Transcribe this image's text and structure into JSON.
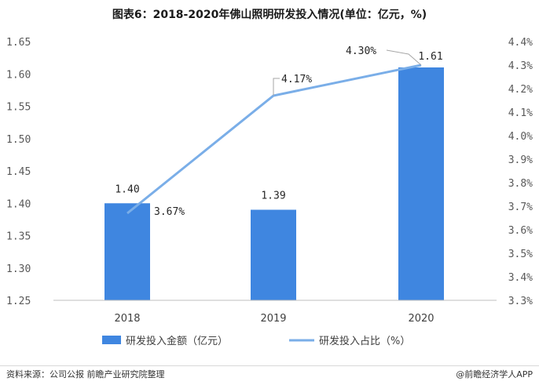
{
  "title": "图表6：2018-2020年佛山照明研发投入情况(单位：亿元，%)",
  "chart_data": {
    "type": "bar+line",
    "title": "图表6：2018-2020年佛山照明研发投入情况(单位：亿元，%)",
    "categories": [
      "2018",
      "2019",
      "2020"
    ],
    "series": [
      {
        "name": "研发投入金额（亿元）",
        "type": "bar",
        "axis": "left",
        "values": [
          1.4,
          1.39,
          1.61
        ],
        "labels": [
          "1.40",
          "1.39",
          "1.61"
        ],
        "color": "#3f86e0"
      },
      {
        "name": "研发投入占比（%）",
        "type": "line",
        "axis": "right",
        "values": [
          3.67,
          4.17,
          4.3
        ],
        "labels": [
          "3.67%",
          "4.17%",
          "4.30%"
        ],
        "color": "#7aaee8"
      }
    ],
    "left_axis": {
      "range": [
        1.25,
        1.65
      ],
      "ticks": [
        "1.25",
        "1.30",
        "1.35",
        "1.40",
        "1.45",
        "1.50",
        "1.55",
        "1.60",
        "1.65"
      ]
    },
    "right_axis": {
      "range": [
        3.3,
        4.4
      ],
      "ticks": [
        "3.3%",
        "3.4%",
        "3.5%",
        "3.6%",
        "3.7%",
        "3.8%",
        "3.9%",
        "4.0%",
        "4.1%",
        "4.2%",
        "4.3%",
        "4.4%"
      ]
    },
    "legend_position": "bottom",
    "grid": false
  },
  "footer": {
    "source": "资料来源：公司公报 前瞻产业研究院整理",
    "brand": "@前瞻经济学人APP"
  }
}
